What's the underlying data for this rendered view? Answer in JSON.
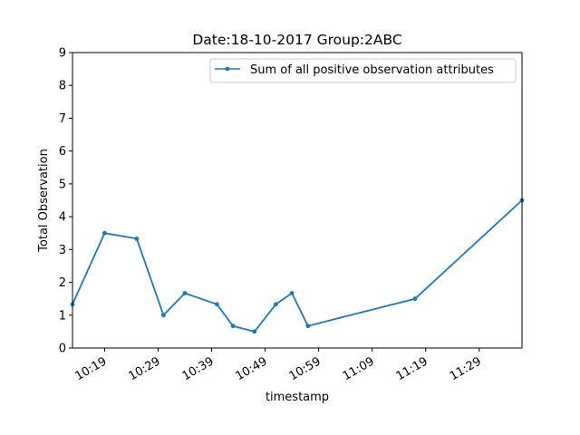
{
  "chart_data": {
    "type": "line",
    "title": "Date:18-10-2017  Group:2ABC",
    "xlabel": "timestamp",
    "ylabel": "Total Observation",
    "ylim": [
      0,
      9
    ],
    "yticks": [
      0,
      1,
      2,
      3,
      4,
      5,
      6,
      7,
      8,
      9
    ],
    "xlim": [
      "10:13",
      "11:37"
    ],
    "xticks": [
      "10:19",
      "10:29",
      "10:39",
      "10:49",
      "10:59",
      "11:09",
      "11:19",
      "11:29"
    ],
    "grid": false,
    "legend_position": "top-right",
    "series": [
      {
        "name": "Sum of all positive observation attributes",
        "color": "#1f77b4",
        "marker": "point",
        "x": [
          "10:13",
          "10:19",
          "10:25",
          "10:30",
          "10:34",
          "10:40",
          "10:43",
          "10:47",
          "10:51",
          "10:54",
          "10:57",
          "11:17",
          "11:37"
        ],
        "values": [
          1.33,
          3.5,
          3.33,
          1.0,
          1.67,
          1.33,
          0.67,
          0.5,
          1.33,
          1.67,
          0.67,
          1.5,
          4.5
        ]
      }
    ]
  }
}
